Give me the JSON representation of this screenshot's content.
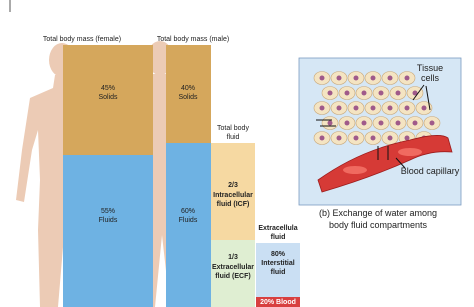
{
  "female": {
    "title": "Total body mass (female)",
    "solids": {
      "percent": "45%",
      "label": "Solids"
    },
    "fluids": {
      "percent": "55%",
      "label": "Fluids"
    }
  },
  "male": {
    "title": "Total body mass (male)",
    "solids": {
      "percent": "40%",
      "label": "Solids"
    },
    "fluids": {
      "percent": "60%",
      "label": "Fluids"
    }
  },
  "total_body_fluid": {
    "title": [
      "Total body",
      "fluid"
    ],
    "icf": {
      "fraction": "2/3",
      "label": [
        "Intracellular",
        "fluid (ICF)"
      ]
    },
    "ecf": {
      "fraction": "1/3",
      "label": [
        "Extracellular",
        "fluid (ECF)"
      ]
    }
  },
  "extracellular": {
    "title": [
      "Extracellula",
      "fluid"
    ],
    "interstitial": {
      "percent": "80%",
      "label": [
        "Interstitial",
        "fluid"
      ]
    },
    "blood": {
      "label": "20% Blood"
    }
  },
  "panel_b": {
    "tissue_cells": [
      "Tissue",
      "cells"
    ],
    "blood_capillary": "Blood capillary",
    "caption": [
      "(b) Exchange of water among",
      "body fluid compartments"
    ]
  }
}
